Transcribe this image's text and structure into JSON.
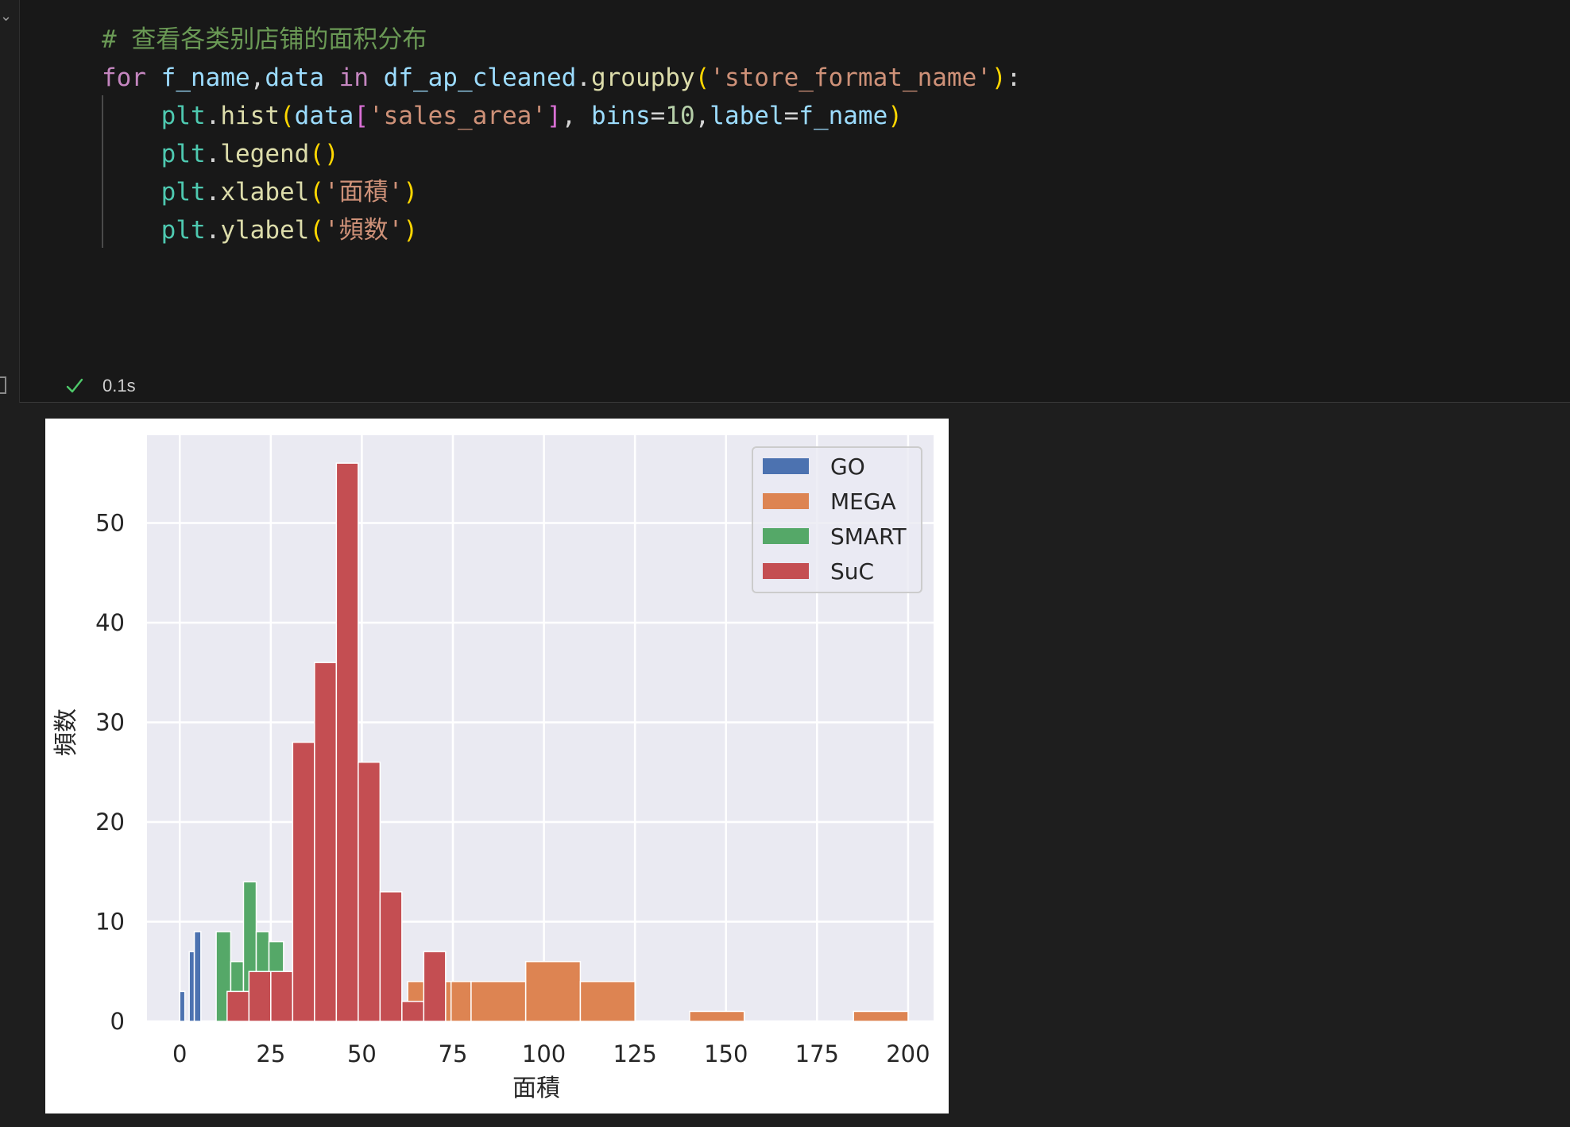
{
  "cell": {
    "code_lines": [
      [
        {
          "t": "# 查看各类别店铺的面积分布",
          "c": "comment"
        }
      ],
      [
        {
          "t": "for",
          "c": "keyword"
        },
        {
          "t": " ",
          "c": "punc"
        },
        {
          "t": "f_name",
          "c": "var"
        },
        {
          "t": ",",
          "c": "punc"
        },
        {
          "t": "data",
          "c": "var"
        },
        {
          "t": " ",
          "c": "punc"
        },
        {
          "t": "in",
          "c": "keyword"
        },
        {
          "t": " ",
          "c": "punc"
        },
        {
          "t": "df_ap_cleaned",
          "c": "var"
        },
        {
          "t": ".",
          "c": "punc"
        },
        {
          "t": "groupby",
          "c": "fn"
        },
        {
          "t": "(",
          "c": "paren1"
        },
        {
          "t": "'store_format_name'",
          "c": "str"
        },
        {
          "t": ")",
          "c": "paren1"
        },
        {
          "t": ":",
          "c": "punc"
        }
      ],
      [
        {
          "t": "    ",
          "c": "punc"
        },
        {
          "t": "plt",
          "c": "mod"
        },
        {
          "t": ".",
          "c": "punc"
        },
        {
          "t": "hist",
          "c": "fn"
        },
        {
          "t": "(",
          "c": "paren1"
        },
        {
          "t": "data",
          "c": "var"
        },
        {
          "t": "[",
          "c": "paren2"
        },
        {
          "t": "'sales_area'",
          "c": "str"
        },
        {
          "t": "]",
          "c": "paren2"
        },
        {
          "t": ", ",
          "c": "punc"
        },
        {
          "t": "bins",
          "c": "var"
        },
        {
          "t": "=",
          "c": "punc"
        },
        {
          "t": "10",
          "c": "num"
        },
        {
          "t": ",",
          "c": "punc"
        },
        {
          "t": "label",
          "c": "var"
        },
        {
          "t": "=",
          "c": "punc"
        },
        {
          "t": "f_name",
          "c": "var"
        },
        {
          "t": ")",
          "c": "paren1"
        }
      ],
      [
        {
          "t": "    ",
          "c": "punc"
        },
        {
          "t": "plt",
          "c": "mod"
        },
        {
          "t": ".",
          "c": "punc"
        },
        {
          "t": "legend",
          "c": "fn"
        },
        {
          "t": "()",
          "c": "paren1"
        }
      ],
      [
        {
          "t": "    ",
          "c": "punc"
        },
        {
          "t": "plt",
          "c": "mod"
        },
        {
          "t": ".",
          "c": "punc"
        },
        {
          "t": "xlabel",
          "c": "fn"
        },
        {
          "t": "(",
          "c": "paren1"
        },
        {
          "t": "'面積'",
          "c": "str"
        },
        {
          "t": ")",
          "c": "paren1"
        }
      ],
      [
        {
          "t": "    ",
          "c": "punc"
        },
        {
          "t": "plt",
          "c": "mod"
        },
        {
          "t": ".",
          "c": "punc"
        },
        {
          "t": "ylabel",
          "c": "fn"
        },
        {
          "t": "(",
          "c": "paren1"
        },
        {
          "t": "'頻数'",
          "c": "str"
        },
        {
          "t": ")",
          "c": "paren1"
        }
      ]
    ],
    "exec_time": "0.1s",
    "status_icon": "check-icon",
    "status_color": "#4ec96a",
    "collapse_icon": "chevron-down-icon"
  },
  "chart_data": {
    "type": "bar",
    "subtype": "histogram",
    "title": "",
    "xlabel": "面積",
    "ylabel": "頻数",
    "xlim": [
      -9,
      207
    ],
    "ylim": [
      0,
      58.8
    ],
    "xticks": [
      0,
      25,
      50,
      75,
      100,
      125,
      150,
      175,
      200
    ],
    "yticks": [
      0,
      10,
      20,
      30,
      40,
      50
    ],
    "grid": true,
    "legend_position": "top-right",
    "series": [
      {
        "name": "GO",
        "color": "#4c72b0",
        "bins": [
          {
            "x0": 0,
            "x1": 1.4,
            "count": 3
          },
          {
            "x0": 2.6,
            "x1": 4,
            "count": 7
          },
          {
            "x0": 4,
            "x1": 5.8,
            "count": 9
          }
        ]
      },
      {
        "name": "MEGA",
        "color": "#dd8452",
        "bins": [
          {
            "x0": 62.6,
            "x1": 68.6,
            "count": 4
          },
          {
            "x0": 68.6,
            "x1": 74.5,
            "count": 4
          },
          {
            "x0": 74.5,
            "x1": 80,
            "count": 4
          },
          {
            "x0": 80,
            "x1": 95,
            "count": 4
          },
          {
            "x0": 95,
            "x1": 110,
            "count": 6
          },
          {
            "x0": 110,
            "x1": 125,
            "count": 4
          },
          {
            "x0": 140,
            "x1": 155,
            "count": 1
          },
          {
            "x0": 185,
            "x1": 200,
            "count": 1
          }
        ]
      },
      {
        "name": "SMART",
        "color": "#55a868",
        "bins": [
          {
            "x0": 10,
            "x1": 14,
            "count": 9
          },
          {
            "x0": 14,
            "x1": 17.5,
            "count": 6
          },
          {
            "x0": 17.5,
            "x1": 21,
            "count": 14
          },
          {
            "x0": 21,
            "x1": 24.5,
            "count": 9
          },
          {
            "x0": 24.5,
            "x1": 28.5,
            "count": 8
          }
        ]
      },
      {
        "name": "SuC",
        "color": "#c44e52",
        "bins": [
          {
            "x0": 13,
            "x1": 19,
            "count": 3
          },
          {
            "x0": 19,
            "x1": 25,
            "count": 5
          },
          {
            "x0": 25,
            "x1": 31,
            "count": 5
          },
          {
            "x0": 31,
            "x1": 37,
            "count": 28
          },
          {
            "x0": 37,
            "x1": 43,
            "count": 36
          },
          {
            "x0": 43,
            "x1": 49,
            "count": 56
          },
          {
            "x0": 49,
            "x1": 55,
            "count": 26
          },
          {
            "x0": 55,
            "x1": 61,
            "count": 13
          },
          {
            "x0": 61,
            "x1": 67,
            "count": 2
          },
          {
            "x0": 67,
            "x1": 73,
            "count": 7
          }
        ]
      }
    ]
  }
}
